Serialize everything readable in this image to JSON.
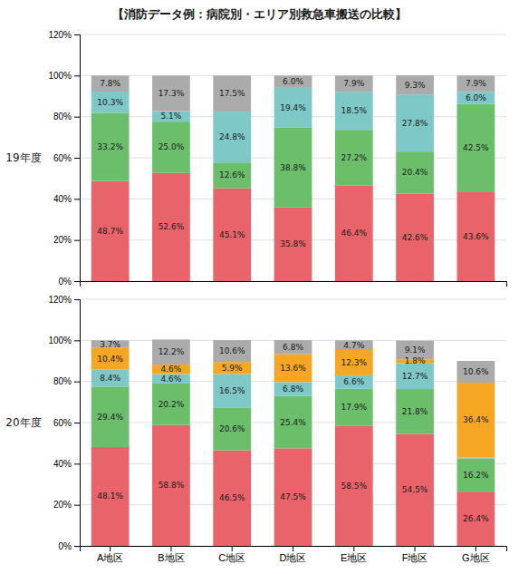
{
  "chart_data": [
    {
      "type": "bar",
      "stacked": true,
      "grid": true,
      "data_labels": true,
      "title": "【消防データ例：病院別・エリア別救急車搬送の比較】",
      "ylabel": "19年度",
      "categories": [
        null,
        null,
        null,
        null,
        null,
        null,
        null
      ],
      "ylim": [
        0,
        120
      ],
      "yticks": [
        {
          "value": 0,
          "label": "0%"
        },
        {
          "value": 20,
          "label": "20%"
        },
        {
          "value": 40,
          "label": "40%"
        },
        {
          "value": 60,
          "label": "60%"
        },
        {
          "value": 80,
          "label": "80%"
        },
        {
          "value": 100,
          "label": "100%"
        },
        {
          "value": 120,
          "label": "120%"
        }
      ],
      "series": [
        {
          "color": "#E8636A",
          "values": [
            48.7,
            52.6,
            45.1,
            35.8,
            46.4,
            42.6,
            43.6
          ],
          "value_labels": [
            "48.7%",
            "52.6%",
            "45.1%",
            "35.8%",
            "46.4%",
            "42.6%",
            "43.6%"
          ]
        },
        {
          "color": "#6BBF6B",
          "values": [
            33.2,
            25.0,
            12.6,
            38.8,
            27.2,
            20.4,
            42.5
          ],
          "value_labels": [
            "33.2%",
            "25.0%",
            "12.6%",
            "38.8%",
            "27.2%",
            "20.4%",
            "42.5%"
          ]
        },
        {
          "color": "#7EC8C8",
          "values": [
            10.3,
            5.1,
            24.8,
            19.4,
            18.5,
            27.8,
            6.0
          ],
          "value_labels": [
            "10.3%",
            "5.1%",
            "24.8%",
            "19.4%",
            "18.5%",
            "27.8%",
            "6.0%"
          ]
        },
        {
          "color": "#ABABAB",
          "values": [
            7.8,
            17.3,
            17.5,
            6.0,
            7.9,
            9.3,
            7.9
          ],
          "value_labels": [
            "7.8%",
            "17.3%",
            "17.5%",
            "6.0%",
            "7.9%",
            "9.3%",
            "7.9%"
          ]
        }
      ]
    },
    {
      "type": "bar",
      "stacked": true,
      "grid": true,
      "data_labels": true,
      "ylabel": "20年度",
      "categories": [
        "A地区",
        "B地区",
        "C地区",
        "D地区",
        "E地区",
        "F地区",
        "G地区"
      ],
      "ylim": [
        0,
        120
      ],
      "yticks": [
        {
          "value": 0,
          "label": "0%"
        },
        {
          "value": 20,
          "label": "20%"
        },
        {
          "value": 40,
          "label": "40%"
        },
        {
          "value": 60,
          "label": "60%"
        },
        {
          "value": 80,
          "label": "80%"
        },
        {
          "value": 100,
          "label": "100%"
        },
        {
          "value": 120,
          "label": "120%"
        }
      ],
      "series": [
        {
          "color": "#E8636A",
          "values": [
            48.1,
            58.8,
            46.5,
            47.5,
            58.5,
            54.5,
            26.4
          ],
          "value_labels": [
            "48.1%",
            "58.8%",
            "46.5%",
            "47.5%",
            "58.5%",
            "54.5%",
            "26.4%"
          ]
        },
        {
          "color": "#6BBF6B",
          "values": [
            29.4,
            20.2,
            20.6,
            25.4,
            17.9,
            21.8,
            16.2
          ],
          "value_labels": [
            "29.4%",
            "20.2%",
            "20.6%",
            "25.4%",
            "17.9%",
            "21.8%",
            "16.2%"
          ]
        },
        {
          "color": "#7EC8C8",
          "values": [
            8.4,
            4.6,
            16.5,
            6.8,
            6.6,
            12.7,
            0.4
          ],
          "value_labels": [
            "8.4%",
            "4.6%",
            "16.5%",
            "6.8%",
            "6.6%",
            "12.7%",
            null
          ]
        },
        {
          "color": "#F5A623",
          "values": [
            10.4,
            4.6,
            5.9,
            13.6,
            12.3,
            1.8,
            36.4
          ],
          "value_labels": [
            "10.4%",
            "4.6%",
            "5.9%",
            "13.6%",
            "12.3%",
            "1.8%",
            "36.4%"
          ]
        },
        {
          "color": "#ABABAB",
          "values": [
            3.7,
            12.2,
            10.6,
            6.8,
            4.7,
            9.1,
            10.6
          ],
          "value_labels": [
            "3.7%",
            "12.2%",
            "10.6%",
            "6.8%",
            "4.7%",
            "9.1%",
            "10.6%"
          ]
        }
      ]
    }
  ]
}
